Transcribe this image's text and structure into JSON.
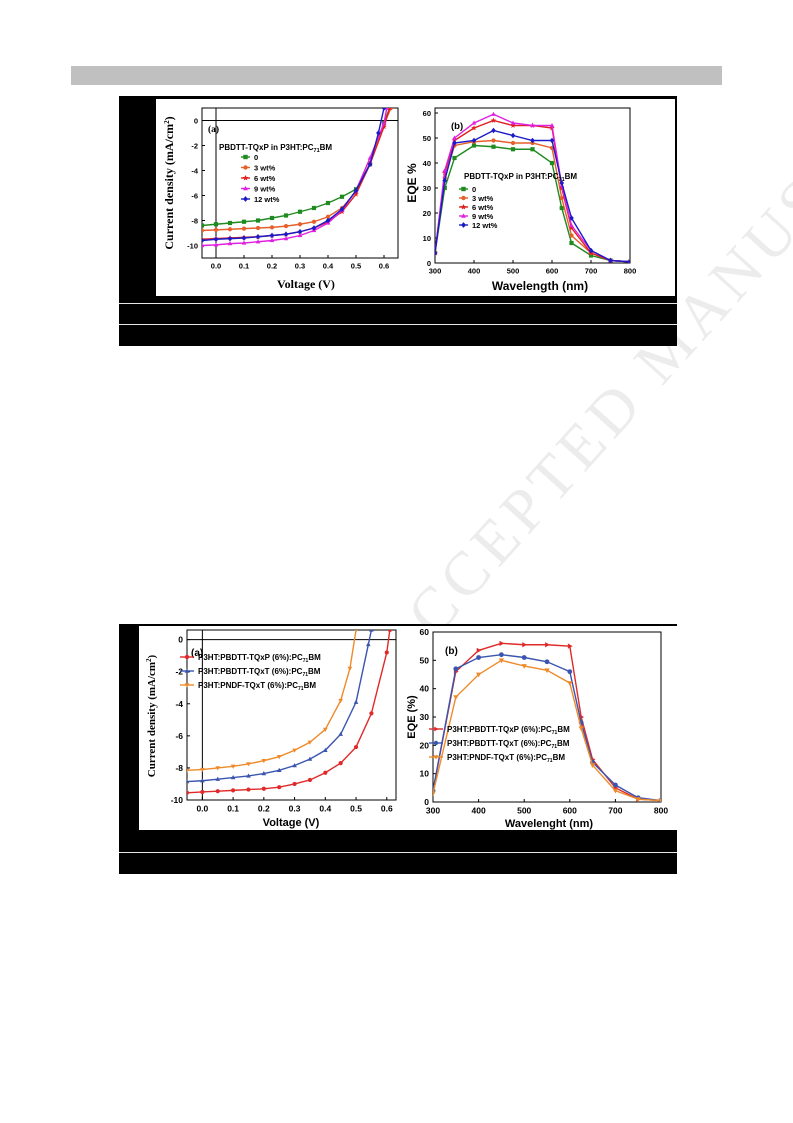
{
  "watermark": "ACCEPTED MANUSCRIPT",
  "figure1": {
    "panel_a": {
      "tag": "(a)",
      "ylabel": "Current density (mA/cm",
      "ylabel_sup": "2",
      "ylabel_end": ")",
      "xlabel": "Voltage (V)",
      "legend_title": "PBDTT-TQxP in P3HT:PC",
      "legend_title_sub": "71",
      "legend_title_end": "BM",
      "legend": [
        "0",
        "3 wt%",
        "6 wt%",
        "9 wt%",
        "12 wt%"
      ]
    },
    "panel_b": {
      "tag": "(b)",
      "ylabel": "EQE %",
      "xlabel": "Wavelength (nm)",
      "legend_title": "PBDTT-TQxP in P3HT:PC",
      "legend_title_sub": "71",
      "legend_title_end": "BM",
      "legend": [
        "0",
        "3 wt%",
        "6 wt%",
        "9 wt%",
        "12 wt%"
      ]
    }
  },
  "figure2": {
    "panel_a": {
      "tag": "(a)",
      "ylabel": "Current density (mA/cm",
      "ylabel_sup": "2",
      "ylabel_end": ")",
      "xlabel": "Voltage (V)",
      "legend": [
        {
          "pre": "P3HT:PBDTT-TQxP (6%):PC",
          "sub": "71",
          "post": "BM"
        },
        {
          "pre": "P3HT:PBDTT-TQxT (6%):PC",
          "sub": "71",
          "post": "BM"
        },
        {
          "pre": "P3HT:PNDF-TQxT (6%):PC",
          "sub": "71",
          "post": "BM"
        }
      ]
    },
    "panel_b": {
      "tag": "(b)",
      "ylabel": "EQE (%)",
      "xlabel": "Wavelenght (nm)",
      "legend": [
        {
          "pre": "P3HT:PBDTT-TQxP (6%):PC",
          "sub": "71",
          "post": "BM"
        },
        {
          "pre": "P3HT:PBDTT-TQxT (6%):PC",
          "sub": "71",
          "post": "BM"
        },
        {
          "pre": "P3HT:PNDF-TQxT (6%):PC",
          "sub": "71",
          "post": "BM"
        }
      ]
    }
  },
  "chart_data": [
    {
      "type": "line",
      "id": "fig1a",
      "xlim": [
        -0.05,
        0.65
      ],
      "ylim": [
        -11,
        1
      ],
      "xticks": [
        0.0,
        0.1,
        0.2,
        0.3,
        0.4,
        0.5,
        0.6
      ],
      "xtick_labels": [
        "0.0",
        "0.1",
        "0.2",
        "0.3",
        "0.4",
        "0.5",
        "0.6"
      ],
      "yticks": [
        0,
        -2,
        -4,
        -6,
        -8,
        -10
      ],
      "ytick_labels": [
        "0",
        "-2",
        "-4",
        "-6",
        "-8",
        "-10"
      ],
      "series": [
        {
          "name": "0",
          "color": "#1f8a1f",
          "marker": "square",
          "x": [
            -0.05,
            0.0,
            0.05,
            0.1,
            0.15,
            0.2,
            0.25,
            0.3,
            0.35,
            0.4,
            0.45,
            0.5,
            0.55,
            0.6,
            0.62
          ],
          "y": [
            -8.4,
            -8.3,
            -8.2,
            -8.1,
            -8.0,
            -7.8,
            -7.6,
            -7.3,
            -7.0,
            -6.6,
            -6.1,
            -5.5,
            -3.5,
            -0.2,
            1.0
          ]
        },
        {
          "name": "3 wt%",
          "color": "#e5602a",
          "marker": "circle",
          "x": [
            -0.05,
            0.0,
            0.05,
            0.1,
            0.15,
            0.2,
            0.25,
            0.3,
            0.35,
            0.4,
            0.45,
            0.5,
            0.55,
            0.6,
            0.625
          ],
          "y": [
            -8.8,
            -8.75,
            -8.7,
            -8.65,
            -8.6,
            -8.55,
            -8.45,
            -8.3,
            -8.1,
            -7.7,
            -7.0,
            -5.7,
            -3.4,
            -0.3,
            1.0
          ]
        },
        {
          "name": "6 wt%",
          "color": "#e02020",
          "marker": "star",
          "x": [
            -0.05,
            0.0,
            0.05,
            0.1,
            0.15,
            0.2,
            0.25,
            0.3,
            0.35,
            0.4,
            0.45,
            0.5,
            0.55,
            0.6,
            0.62
          ],
          "y": [
            -9.5,
            -9.45,
            -9.4,
            -9.35,
            -9.3,
            -9.2,
            -9.1,
            -8.9,
            -8.6,
            -8.1,
            -7.3,
            -5.9,
            -3.5,
            -0.5,
            1.0
          ]
        },
        {
          "name": "9 wt%",
          "color": "#e020e0",
          "marker": "triangle",
          "x": [
            -0.05,
            0.0,
            0.05,
            0.1,
            0.15,
            0.2,
            0.25,
            0.3,
            0.35,
            0.4,
            0.45,
            0.5,
            0.55,
            0.6,
            0.61
          ],
          "y": [
            -10.0,
            -9.95,
            -9.85,
            -9.8,
            -9.7,
            -9.6,
            -9.45,
            -9.2,
            -8.8,
            -8.2,
            -7.2,
            -5.6,
            -3.0,
            -0.2,
            1.0
          ]
        },
        {
          "name": "12 wt%",
          "color": "#1a1ac8",
          "marker": "diamond",
          "x": [
            -0.05,
            0.0,
            0.05,
            0.1,
            0.15,
            0.2,
            0.25,
            0.3,
            0.35,
            0.4,
            0.45,
            0.5,
            0.55,
            0.58,
            0.6
          ],
          "y": [
            -9.6,
            -9.5,
            -9.45,
            -9.4,
            -9.3,
            -9.2,
            -9.1,
            -8.9,
            -8.6,
            -8.0,
            -7.1,
            -5.6,
            -3.5,
            -1.0,
            1.0
          ]
        }
      ]
    },
    {
      "type": "line",
      "id": "fig1b",
      "xlim": [
        300,
        800
      ],
      "ylim": [
        0,
        62
      ],
      "xticks": [
        300,
        400,
        500,
        600,
        700,
        800
      ],
      "xtick_labels": [
        "300",
        "400",
        "500",
        "600",
        "700",
        "800"
      ],
      "yticks": [
        0,
        10,
        20,
        30,
        40,
        50,
        60
      ],
      "ytick_labels": [
        "0",
        "10",
        "20",
        "30",
        "40",
        "50",
        "60"
      ],
      "series": [
        {
          "name": "0",
          "color": "#1f8a1f",
          "marker": "square",
          "x": [
            300,
            325,
            350,
            400,
            450,
            500,
            550,
            600,
            625,
            650,
            700,
            750,
            800
          ],
          "y": [
            4,
            30,
            42,
            47,
            46.5,
            45.5,
            45.5,
            40,
            22,
            8,
            3,
            1,
            0.5
          ]
        },
        {
          "name": "3 wt%",
          "color": "#e5602a",
          "marker": "circle",
          "x": [
            300,
            325,
            350,
            400,
            450,
            500,
            550,
            600,
            625,
            650,
            700,
            750,
            800
          ],
          "y": [
            4,
            34,
            47,
            48.5,
            49,
            48,
            48,
            46,
            26,
            11,
            4,
            1,
            0.5
          ]
        },
        {
          "name": "6 wt%",
          "color": "#e02020",
          "marker": "star",
          "x": [
            300,
            325,
            350,
            400,
            450,
            500,
            550,
            600,
            625,
            650,
            700,
            750,
            800
          ],
          "y": [
            4,
            36,
            49,
            54,
            57,
            55,
            55,
            54,
            30,
            14,
            4,
            1,
            0.5
          ]
        },
        {
          "name": "9 wt%",
          "color": "#e020e0",
          "marker": "triangle",
          "x": [
            300,
            325,
            350,
            400,
            450,
            500,
            550,
            600,
            625,
            650,
            700,
            750,
            800
          ],
          "y": [
            4,
            37,
            50,
            56,
            59.5,
            56,
            55,
            55,
            31,
            15,
            5,
            1,
            0.5
          ]
        },
        {
          "name": "12 wt%",
          "color": "#1a1ac8",
          "marker": "diamond",
          "x": [
            300,
            325,
            350,
            400,
            450,
            500,
            550,
            600,
            625,
            650,
            700,
            750,
            800
          ],
          "y": [
            4,
            33,
            48,
            49,
            53,
            51,
            49,
            49,
            32,
            18,
            5,
            1,
            0.5
          ]
        }
      ]
    },
    {
      "type": "line",
      "id": "fig2a",
      "xlim": [
        -0.05,
        0.63
      ],
      "ylim": [
        -10,
        0.6
      ],
      "xticks": [
        0.0,
        0.1,
        0.2,
        0.3,
        0.4,
        0.5,
        0.6
      ],
      "xtick_labels": [
        "0.0",
        "0.1",
        "0.2",
        "0.3",
        "0.4",
        "0.5",
        "0.6"
      ],
      "yticks": [
        0,
        -2,
        -4,
        -6,
        -8,
        -10
      ],
      "ytick_labels": [
        "0",
        "-2",
        "-4",
        "-6",
        "-8",
        "-10"
      ],
      "series": [
        {
          "name": "P3HT:PBDTT-TQxP (6%):PC71BM",
          "color": "#e02a2a",
          "marker": "circle",
          "x": [
            -0.05,
            0.0,
            0.05,
            0.1,
            0.15,
            0.2,
            0.25,
            0.3,
            0.35,
            0.4,
            0.45,
            0.5,
            0.55,
            0.6,
            0.61
          ],
          "y": [
            -9.55,
            -9.5,
            -9.45,
            -9.4,
            -9.35,
            -9.3,
            -9.2,
            -9.0,
            -8.75,
            -8.3,
            -7.7,
            -6.7,
            -4.6,
            -0.8,
            0.6
          ]
        },
        {
          "name": "P3HT:PBDTT-TQxT (6%):PC71BM",
          "color": "#3a55b0",
          "marker": "triangle",
          "x": [
            -0.05,
            0.0,
            0.05,
            0.1,
            0.15,
            0.2,
            0.25,
            0.3,
            0.35,
            0.4,
            0.45,
            0.5,
            0.54,
            0.55
          ],
          "y": [
            -8.85,
            -8.8,
            -8.7,
            -8.6,
            -8.5,
            -8.35,
            -8.15,
            -7.85,
            -7.45,
            -6.9,
            -5.9,
            -3.9,
            -0.3,
            0.6
          ]
        },
        {
          "name": "P3HT:PNDF-TQxT (6%):PC71BM",
          "color": "#ef8a2a",
          "marker": "triangle-down",
          "x": [
            -0.05,
            0.0,
            0.05,
            0.1,
            0.15,
            0.2,
            0.25,
            0.3,
            0.35,
            0.4,
            0.45,
            0.48,
            0.5
          ],
          "y": [
            -8.15,
            -8.1,
            -8.0,
            -7.9,
            -7.75,
            -7.55,
            -7.3,
            -6.9,
            -6.4,
            -5.6,
            -3.8,
            -1.8,
            0.6
          ]
        }
      ]
    },
    {
      "type": "line",
      "id": "fig2b",
      "xlim": [
        300,
        800
      ],
      "ylim": [
        0,
        60
      ],
      "xticks": [
        300,
        400,
        500,
        600,
        700,
        800
      ],
      "xtick_labels": [
        "300",
        "400",
        "500",
        "600",
        "700",
        "800"
      ],
      "yticks": [
        0,
        10,
        20,
        30,
        40,
        50,
        60
      ],
      "ytick_labels": [
        "0",
        "10",
        "20",
        "30",
        "40",
        "50",
        "60"
      ],
      "series": [
        {
          "name": "P3HT:PBDTT-TQxP (6%):PC71BM",
          "color": "#e02a2a",
          "marker": "triangle-right",
          "x": [
            300,
            350,
            400,
            450,
            500,
            550,
            600,
            625,
            650,
            700,
            750,
            800
          ],
          "y": [
            4,
            46,
            53.5,
            56,
            55.5,
            55.5,
            55,
            30,
            15,
            5,
            1,
            0.5
          ]
        },
        {
          "name": "P3HT:PBDTT-TQxT (6%):PC71BM",
          "color": "#3a55b0",
          "marker": "circle",
          "x": [
            300,
            350,
            400,
            450,
            500,
            550,
            600,
            625,
            650,
            700,
            750,
            800
          ],
          "y": [
            4,
            47,
            51,
            52,
            51,
            49.5,
            46,
            28,
            14,
            6,
            1.5,
            0.5
          ]
        },
        {
          "name": "P3HT:PNDF-TQxT (6%):PC71BM",
          "color": "#ef8a2a",
          "marker": "triangle-down",
          "x": [
            300,
            350,
            400,
            450,
            500,
            550,
            600,
            625,
            650,
            700,
            750,
            800
          ],
          "y": [
            3,
            37,
            45,
            50,
            48,
            46.5,
            42,
            26,
            13,
            4,
            1,
            0.5
          ]
        }
      ]
    }
  ]
}
